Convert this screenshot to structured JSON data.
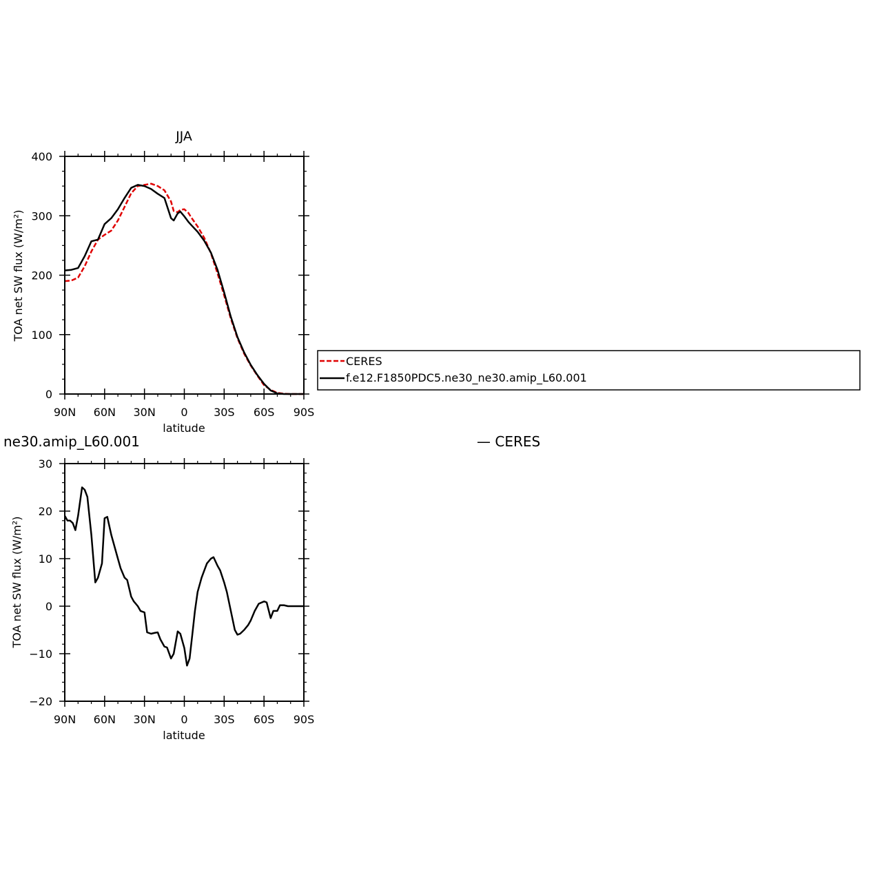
{
  "chart_data": [
    {
      "type": "line",
      "title": "JJA",
      "xlabel": "latitude",
      "ylabel": "TOA net SW flux (W/m²)",
      "xlim": [
        90,
        -90
      ],
      "ylim": [
        0,
        400
      ],
      "x_ticks": [
        90,
        60,
        30,
        0,
        -30,
        -60,
        -90
      ],
      "x_tick_labels": [
        "90N",
        "60N",
        "30N",
        "0",
        "30S",
        "60S",
        "90S"
      ],
      "y_ticks": [
        0,
        100,
        200,
        300,
        400
      ],
      "y_tick_labels": [
        "0",
        "100",
        "200",
        "300",
        "400"
      ],
      "legend": {
        "placement": "right",
        "entries": [
          "CERES",
          "f.e12.F1850PDC5.ne30_ne30.amip_L60.001"
        ]
      },
      "series": [
        {
          "name": "CERES",
          "color": "#e00000",
          "dash": true,
          "x": [
            90,
            85,
            80,
            75,
            70,
            65,
            60,
            55,
            50,
            45,
            40,
            35,
            30,
            25,
            20,
            15,
            10,
            8,
            5,
            3,
            0,
            -3,
            -5,
            -10,
            -15,
            -20,
            -25,
            -30,
            -35,
            -40,
            -45,
            -50,
            -55,
            -60,
            -65,
            -70,
            -75,
            -80,
            -85,
            -90
          ],
          "values": [
            190,
            191,
            196,
            215,
            240,
            260,
            268,
            275,
            292,
            315,
            338,
            350,
            352,
            354,
            350,
            343,
            324,
            308,
            306,
            310,
            311,
            305,
            298,
            282,
            263,
            237,
            203,
            166,
            127,
            94,
            68,
            48,
            31,
            15,
            7,
            2,
            0.5,
            0,
            0,
            0
          ]
        },
        {
          "name": "f.e12.F1850PDC5.ne30_ne30.amip_L60.001",
          "color": "#000000",
          "dash": false,
          "x": [
            90,
            85,
            80,
            75,
            70,
            65,
            60,
            55,
            50,
            45,
            40,
            35,
            30,
            25,
            20,
            15,
            10,
            8,
            5,
            3,
            0,
            -3,
            -5,
            -10,
            -15,
            -20,
            -25,
            -30,
            -35,
            -40,
            -45,
            -50,
            -55,
            -60,
            -65,
            -70,
            -75,
            -80,
            -85,
            -90
          ],
          "values": [
            208,
            209,
            212,
            232,
            257,
            260,
            286,
            296,
            311,
            330,
            347,
            352,
            350,
            345,
            337,
            330,
            296,
            292,
            304,
            307,
            299,
            290,
            285,
            273,
            258,
            238,
            209,
            171,
            130,
            96,
            70,
            49,
            32,
            17,
            6,
            1,
            0,
            0,
            0,
            0
          ]
        }
      ]
    },
    {
      "type": "line",
      "title": "ne30.amip_L60.001",
      "subtitle": "— CERES",
      "xlabel": "latitude",
      "ylabel": "TOA net SW flux (W/m²)",
      "xlim": [
        90,
        -90
      ],
      "ylim": [
        -20,
        30
      ],
      "x_ticks": [
        90,
        60,
        30,
        0,
        -30,
        -60,
        -90
      ],
      "x_tick_labels": [
        "90N",
        "60N",
        "30N",
        "0",
        "30S",
        "60S",
        "90S"
      ],
      "y_ticks": [
        -20,
        -10,
        0,
        10,
        20,
        30
      ],
      "y_tick_labels": [
        "−20",
        "−10",
        "0",
        "10",
        "20",
        "30"
      ],
      "series": [
        {
          "color": "#000000",
          "dash": false,
          "x": [
            90,
            88,
            86,
            84,
            82,
            80,
            77,
            75,
            73,
            70,
            67,
            65,
            62,
            60,
            58,
            55,
            50,
            48,
            45,
            43,
            40,
            38,
            35,
            33,
            30,
            28,
            25,
            22,
            20,
            18,
            15,
            13,
            10,
            8,
            5,
            3,
            0,
            -2,
            -4,
            -6,
            -8,
            -10,
            -13,
            -15,
            -17,
            -20,
            -22,
            -25,
            -27,
            -30,
            -32,
            -35,
            -38,
            -40,
            -42,
            -45,
            -48,
            -50,
            -53,
            -56,
            -60,
            -62,
            -65,
            -67,
            -70,
            -72,
            -75,
            -78,
            -80,
            -83,
            -86,
            -90
          ],
          "values": [
            19,
            18,
            18,
            17.5,
            16,
            19,
            25,
            24.5,
            23,
            15,
            5,
            6,
            9,
            18.5,
            18.8,
            15,
            10,
            8,
            6,
            5.5,
            2,
            1,
            0,
            -1,
            -1.3,
            -5.5,
            -5.8,
            -5.6,
            -5.5,
            -7,
            -8.5,
            -8.7,
            -11,
            -10,
            -5.3,
            -5.8,
            -8.8,
            -12.5,
            -11,
            -6,
            -1,
            3,
            6,
            7.5,
            9,
            10,
            10.3,
            8.5,
            7.5,
            5,
            3,
            -1,
            -5,
            -6,
            -5.8,
            -5,
            -4,
            -3,
            -1,
            0.5,
            1,
            0.8,
            -2.5,
            -1,
            -1,
            0.2,
            0.2,
            0,
            0,
            0,
            0,
            0
          ]
        }
      ]
    }
  ]
}
